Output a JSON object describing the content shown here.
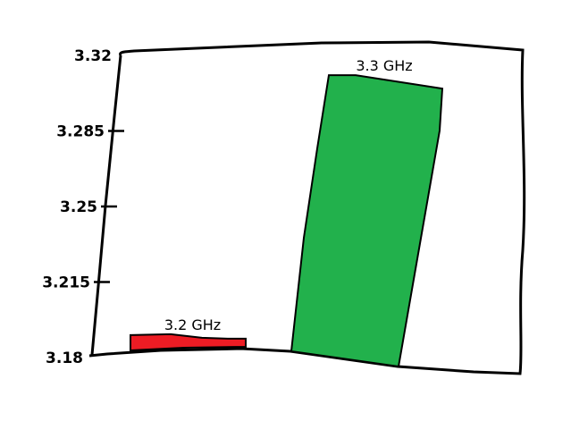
{
  "chart_data": {
    "type": "bar",
    "title": "",
    "xlabel": "",
    "ylabel": "",
    "ylim": [
      3.18,
      3.32
    ],
    "yticks": [
      "3.18",
      "3.215",
      "3.25",
      "3.285",
      "3.32"
    ],
    "grid": false,
    "categories": [
      "3.2 GHz",
      "3.3 GHz"
    ],
    "values": [
      3.19,
      3.31
    ],
    "data_labels": [
      "3.2 GHz",
      "3.3 GHz"
    ],
    "colors": [
      "#ed1c24",
      "#22b14c"
    ]
  }
}
